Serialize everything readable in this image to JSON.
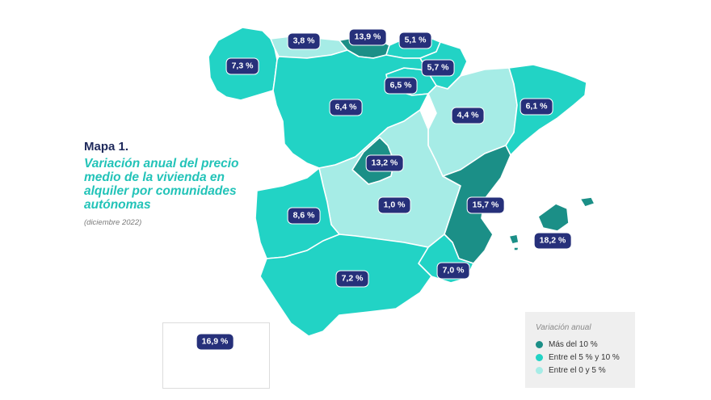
{
  "title": {
    "map_number": "Mapa 1.",
    "lines": [
      "Variación anual del precio",
      "medio de la vivienda en",
      "alquiler por comunidades",
      "autónomas"
    ],
    "date": "(diciembre 2022)"
  },
  "colors": {
    "high": "#1b8f87",
    "mid": "#22d3c5",
    "low": "#a6ece6",
    "badge": "#26307a"
  },
  "legend": {
    "title": "Variación anual",
    "items": [
      {
        "label": "Más del 10 %",
        "color": "#1b8f87"
      },
      {
        "label": "Entre el 5 % y 10 %",
        "color": "#22d3c5"
      },
      {
        "label": "Entre el 0 y 5 %",
        "color": "#a6ece6"
      }
    ]
  },
  "regions": [
    {
      "name": "Galicia",
      "value": "7,3 %",
      "category": "mid"
    },
    {
      "name": "Asturias",
      "value": "3,8 %",
      "category": "low"
    },
    {
      "name": "Cantabria",
      "value": "13,9 %",
      "category": "high"
    },
    {
      "name": "País Vasco",
      "value": "5,1 %",
      "category": "mid"
    },
    {
      "name": "Navarra",
      "value": "5,7 %",
      "category": "mid"
    },
    {
      "name": "La Rioja",
      "value": "6,5 %",
      "category": "mid"
    },
    {
      "name": "Castilla y León",
      "value": "6,4 %",
      "category": "mid"
    },
    {
      "name": "Aragón",
      "value": "4,4 %",
      "category": "low"
    },
    {
      "name": "Cataluña",
      "value": "6,1 %",
      "category": "mid"
    },
    {
      "name": "Madrid",
      "value": "13,2 %",
      "category": "high"
    },
    {
      "name": "Castilla-La Mancha",
      "value": "1,0 %",
      "category": "low"
    },
    {
      "name": "Extremadura",
      "value": "8,6 %",
      "category": "mid"
    },
    {
      "name": "Comunidad Valenciana",
      "value": "15,7 %",
      "category": "high"
    },
    {
      "name": "Illes Balears",
      "value": "18,2 %",
      "category": "high"
    },
    {
      "name": "Región de Murcia",
      "value": "7,0 %",
      "category": "mid"
    },
    {
      "name": "Andalucía",
      "value": "7,2 %",
      "category": "mid"
    },
    {
      "name": "Canarias",
      "value": "16,9 %",
      "category": "high"
    }
  ]
}
